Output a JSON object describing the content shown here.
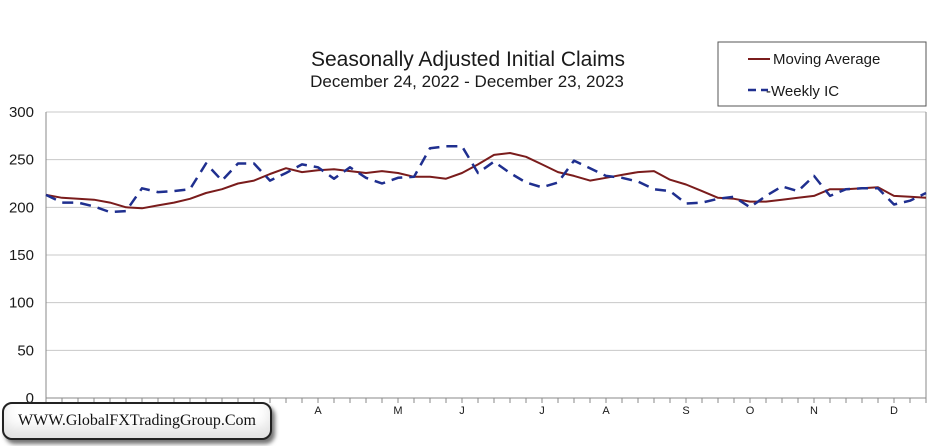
{
  "chart_data": {
    "type": "line",
    "title": "Seasonally Adjusted Initial Claims",
    "subtitle": "December 24, 2022 - December 23, 2023",
    "ylim": [
      0,
      300
    ],
    "yticks": [
      0,
      50,
      100,
      150,
      200,
      250,
      300
    ],
    "month_labels": [
      {
        "label": "A",
        "week": 17
      },
      {
        "label": "M",
        "week": 22
      },
      {
        "label": "J",
        "week": 26
      },
      {
        "label": "J",
        "week": 31
      },
      {
        "label": "A",
        "week": 35
      },
      {
        "label": "S",
        "week": 40
      },
      {
        "label": "O",
        "week": 44
      },
      {
        "label": "N",
        "week": 48
      },
      {
        "label": "D",
        "week": 53
      }
    ],
    "grid": true,
    "legend": "top-right",
    "series": [
      {
        "name": "Moving Average",
        "style": "solid",
        "color": "#7a1c1c",
        "values": [
          213,
          210,
          209,
          208,
          205,
          200,
          199,
          202,
          205,
          209,
          215,
          219,
          225,
          228,
          235,
          241,
          237,
          239,
          240,
          238,
          236,
          238,
          236,
          232,
          232,
          230,
          236,
          245,
          255,
          257,
          253,
          245,
          237,
          233,
          228,
          231,
          234,
          237,
          238,
          229,
          224,
          217,
          210,
          209,
          206,
          206,
          208,
          210,
          212,
          219,
          219,
          220,
          221,
          212,
          211,
          210
        ]
      },
      {
        "name": "-Weekly IC",
        "style": "dashed",
        "color": "#1f2f8f",
        "values": [
          213,
          205,
          205,
          201,
          195,
          196,
          220,
          216,
          217,
          219,
          246,
          228,
          246,
          246,
          228,
          236,
          245,
          242,
          230,
          242,
          231,
          225,
          231,
          232,
          262,
          264,
          264,
          236,
          248,
          236,
          226,
          221,
          226,
          249,
          241,
          233,
          231,
          227,
          219,
          217,
          204,
          205,
          209,
          211,
          200,
          212,
          222,
          217,
          233,
          212,
          219,
          220,
          220,
          203,
          207,
          215
        ]
      }
    ]
  },
  "legend": {
    "moving_average_label": "Moving Average",
    "weekly_label": "-Weekly IC"
  },
  "watermark": {
    "text": "WWW.GlobalFXTradingGroup.Com"
  },
  "colors": {
    "moving_average": "#7a1c1c",
    "weekly": "#1f2f8f",
    "grid": "#c8c8c8"
  }
}
